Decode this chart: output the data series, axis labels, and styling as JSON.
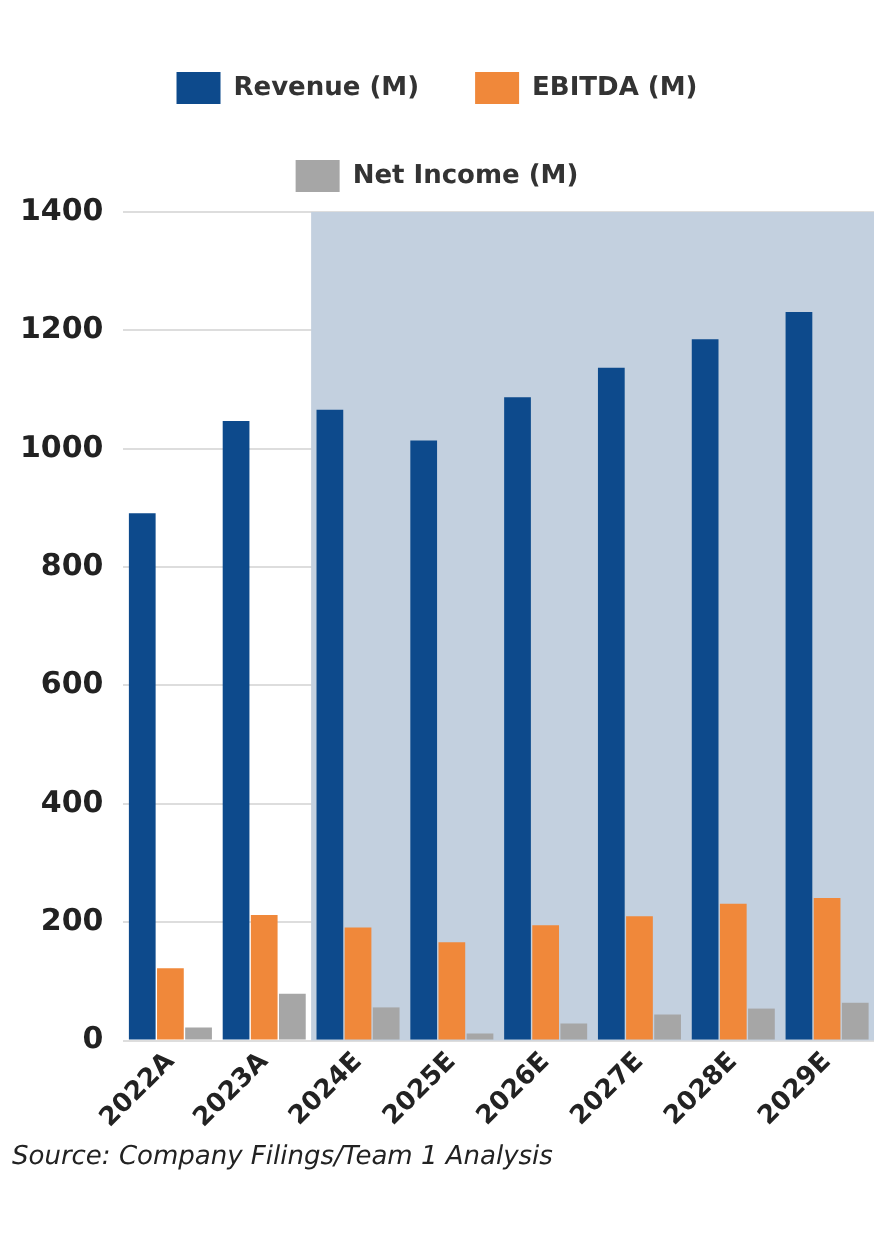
{
  "chart_data": {
    "type": "bar",
    "categories": [
      "2022A",
      "2023A",
      "2024E",
      "2025E",
      "2026E",
      "2027E",
      "2028E",
      "2029E"
    ],
    "series": [
      {
        "name": "Revenue (M)",
        "color": "#0d4a8c",
        "values": [
          891,
          1047,
          1066,
          1014,
          1087,
          1137,
          1185,
          1231
        ]
      },
      {
        "name": "EBITDA (M)",
        "color": "#f0883a",
        "values": [
          122,
          212,
          191,
          166,
          195,
          210,
          231,
          241
        ]
      },
      {
        "name": "Net Income (M)",
        "color": "#a6a6a6",
        "values": [
          22,
          79,
          56,
          12,
          29,
          44,
          54,
          64
        ]
      }
    ],
    "ylim": [
      0,
      1400
    ],
    "yticks": [
      0,
      200,
      400,
      600,
      800,
      1000,
      1200,
      1400
    ],
    "grid": "y",
    "legend": "top",
    "bands": [
      {
        "axis": "x",
        "from": "2024E",
        "to": "2029E",
        "color": "#c3d0df"
      }
    ],
    "annotations": [
      "Source: Company Filings/Team 1 Analysis"
    ]
  }
}
